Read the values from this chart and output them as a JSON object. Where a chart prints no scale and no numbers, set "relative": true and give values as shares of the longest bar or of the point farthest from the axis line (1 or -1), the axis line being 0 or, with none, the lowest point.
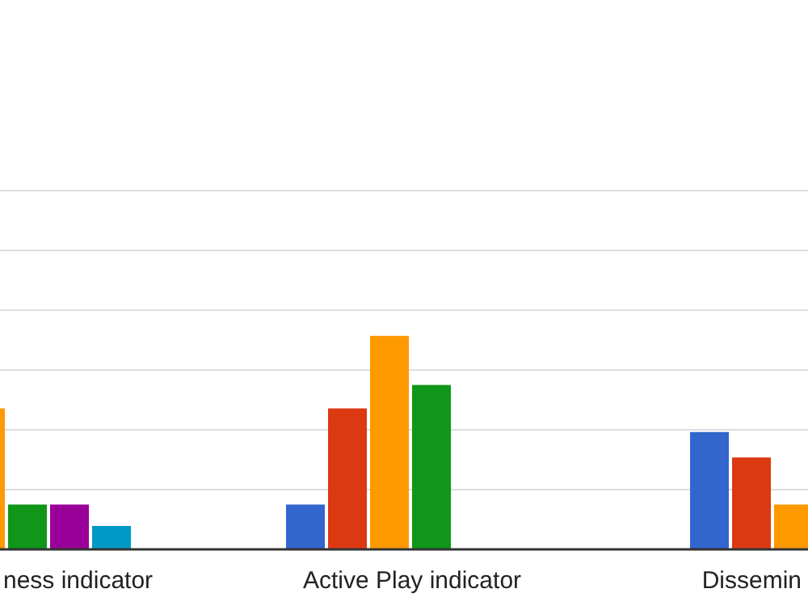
{
  "chart_data": {
    "type": "bar",
    "relative": true,
    "grid": true,
    "categories": [
      "ness indicator",
      "Active Play indicator",
      "Dissemin"
    ],
    "series": [
      {
        "color": "#3366cc",
        "values": [
          null,
          0.21,
          0.55
        ]
      },
      {
        "color": "#dc3912",
        "values": [
          null,
          0.66,
          0.43
        ]
      },
      {
        "color": "#ff9900",
        "values": [
          0.66,
          1,
          0.21
        ]
      },
      {
        "color": "#109618",
        "values": [
          0.21,
          0.77,
          null
        ]
      },
      {
        "color": "#990099",
        "values": [
          0.21,
          null,
          null
        ]
      },
      {
        "color": "#0099c6",
        "values": [
          0.11,
          null,
          null
        ]
      }
    ]
  }
}
